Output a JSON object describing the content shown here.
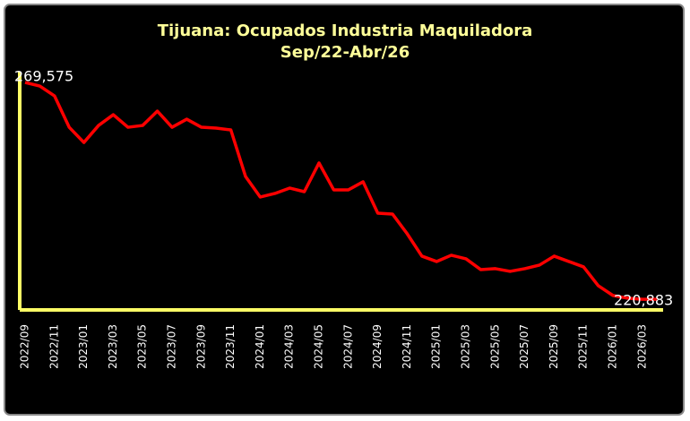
{
  "chart_data": {
    "type": "line",
    "title": "Tijuana: Ocupados Industria Maquiladora",
    "subtitle": "Sep/22-Abr/26",
    "categories": [
      "2022/09",
      null,
      "2022/11",
      null,
      "2023/01",
      null,
      "2023/03",
      null,
      "2023/05",
      null,
      "2023/07",
      null,
      "2023/09",
      null,
      "2023/11",
      null,
      "2024/01",
      null,
      "2024/03",
      null,
      "2024/05",
      null,
      "2024/07",
      null,
      "2024/09",
      null,
      "2024/11",
      null,
      "2025/01",
      null,
      "2025/03",
      null,
      "2025/05",
      null,
      "2025/07",
      null,
      "2025/09",
      null,
      "2025/11",
      null,
      "2026/01",
      null,
      "2026/03",
      null
    ],
    "values": [
      269575,
      268770,
      266560,
      259520,
      256100,
      259920,
      262340,
      259520,
      259920,
      263140,
      259520,
      261330,
      259520,
      259320,
      258920,
      248470,
      243850,
      244650,
      245860,
      245050,
      251490,
      245460,
      245460,
      247270,
      240230,
      240030,
      235600,
      230580,
      229370,
      230780,
      229980,
      227560,
      227770,
      227160,
      227770,
      228570,
      230580,
      229370,
      228170,
      223950,
      221740,
      221130,
      220900,
      220883
    ],
    "value_labels": [
      "269,575",
      null,
      null,
      null,
      null,
      null,
      null,
      null,
      null,
      null,
      null,
      null,
      null,
      null,
      null,
      null,
      null,
      null,
      null,
      null,
      null,
      null,
      null,
      null,
      null,
      null,
      null,
      null,
      null,
      null,
      null,
      null,
      null,
      null,
      null,
      null,
      null,
      null,
      null,
      null,
      null,
      null,
      null,
      "220,883"
    ],
    "color": "#ff0000",
    "axis_color": "#ffff66",
    "ylim": [
      218500,
      272000
    ]
  }
}
